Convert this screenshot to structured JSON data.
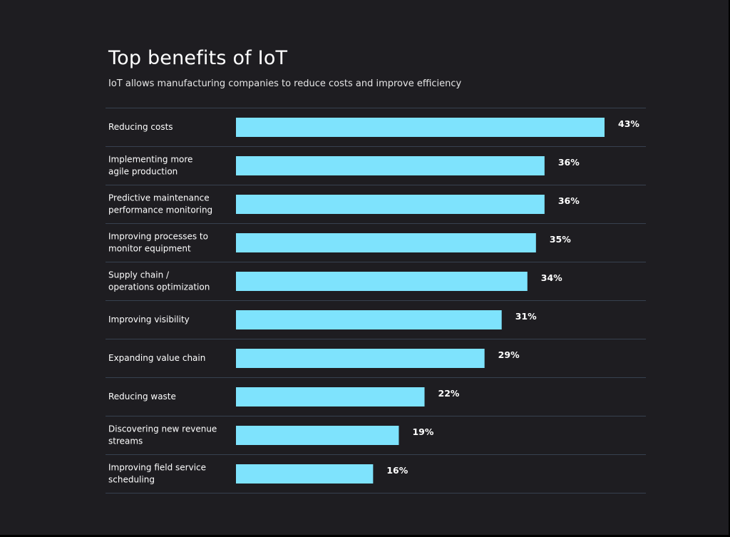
{
  "chart_data": {
    "type": "bar",
    "orientation": "horizontal",
    "title": "Top benefits of IoT",
    "subtitle": "IoT allows manufacturing companies to reduce costs and improve efficiency",
    "categories": [
      [
        "Reducing costs"
      ],
      [
        "Implementing more",
        "agile production"
      ],
      [
        "Predictive maintenance",
        "performance monitoring"
      ],
      [
        "Improving processes to",
        "monitor equipment"
      ],
      [
        "Supply chain /",
        "operations optimization"
      ],
      [
        "Improving visibility"
      ],
      [
        "Expanding value chain"
      ],
      [
        "Reducing waste"
      ],
      [
        "Discovering new revenue",
        "streams"
      ],
      [
        "Improving field service",
        "scheduling"
      ]
    ],
    "values": [
      43,
      36,
      36,
      35,
      34,
      31,
      29,
      22,
      19,
      16
    ],
    "value_labels": [
      "43%",
      "36%",
      "36%",
      "35%",
      "34%",
      "31%",
      "29%",
      "22%",
      "19%",
      "16%"
    ],
    "unit": "%",
    "xlim": [
      0,
      43
    ],
    "colors": {
      "bar": "#7ee3fd",
      "background": "#1e1d21",
      "divider": "#37414f",
      "text": "#ffffff"
    }
  }
}
